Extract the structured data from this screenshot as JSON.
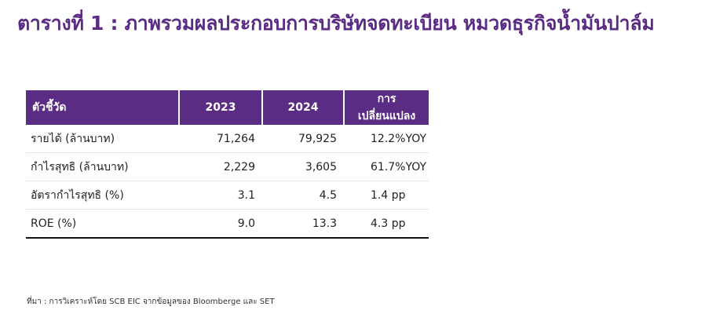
{
  "title": "ตารางที่ 1 : ภาพรวมผลประกอบการบริษัทจดทะเบียน หมวดธุรกิจน้ำมันปาล์ม",
  "colors": {
    "accent": "#5b2c83",
    "rule": "#111111"
  },
  "table": {
    "headers": [
      "ตัวชี้วัด",
      "2023",
      "2024",
      "การเปลี่ยนแปลง"
    ],
    "rows": [
      [
        "รายได้ (ล้านบาท)",
        "71,264",
        "79,925",
        "12.2%YOY"
      ],
      [
        "กำไรสุทธิ (ล้านบาท)",
        "2,229",
        "3,605",
        "61.7%YOY"
      ],
      [
        "อัตรากำไรสุทธิ (%)",
        "3.1",
        "4.5",
        "1.4 pp"
      ],
      [
        "ROE (%)",
        "9.0",
        "13.3",
        "4.3 pp"
      ]
    ]
  },
  "source": "ที่มา : การวิเคราะห์โดย SCB EIC จากข้อมูลของ Bloomberge และ SET"
}
